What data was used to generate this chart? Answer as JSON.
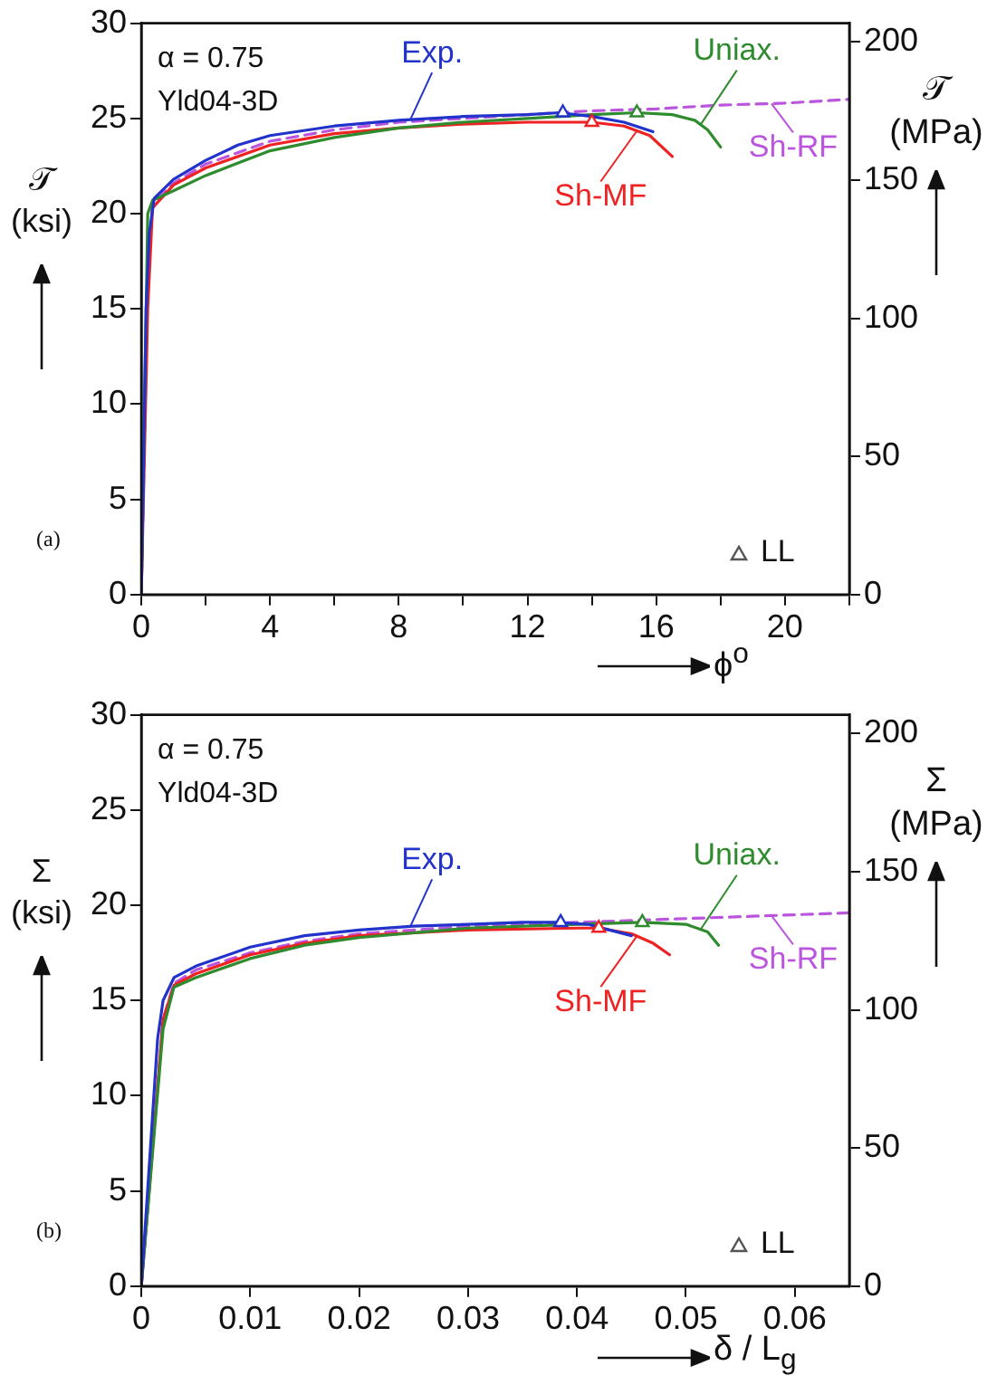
{
  "chart_data": [
    {
      "type": "line",
      "xlabel": "ϕ$^{o}$",
      "ylabel": "𝒯 (ksi)",
      "y2label": "𝒯 (MPa)",
      "annotations": [
        "α = 0.75",
        "Yld04-3D",
        "(a)",
        "LL"
      ],
      "xlim": [
        0,
        22
      ],
      "xticks": [
        0,
        {
          "value": 2,
          "label": null
        },
        4,
        {
          "value": 6,
          "label": null
        },
        8,
        {
          "value": 10,
          "label": null
        },
        12,
        {
          "value": 14,
          "label": null
        },
        16,
        {
          "value": 18,
          "label": null
        },
        20,
        {
          "value": 22,
          "label": null
        }
      ],
      "ylim": [
        0,
        30
      ],
      "yticks": [
        0,
        5,
        10,
        15,
        20,
        25,
        30
      ],
      "y2lim": [
        0,
        206.8
      ],
      "y2ticks": [
        0,
        50,
        100,
        150,
        200
      ],
      "marker": "none",
      "legend": "top right",
      "series": [
        {
          "name": "Exp.",
          "color": "#2233cc",
          "x": [
            0,
            0.15,
            0.25,
            0.4,
            1,
            2,
            3,
            4,
            6,
            8,
            10,
            12,
            13,
            14,
            15,
            15.9
          ],
          "values": [
            0,
            15,
            19,
            20.8,
            21.8,
            22.8,
            23.6,
            24.1,
            24.6,
            24.9,
            25.1,
            25.2,
            25.3,
            25.1,
            24.8,
            24.3
          ]
        },
        {
          "name": "Uniax.",
          "color": "#2e8b2e",
          "x": [
            0,
            0.1,
            0.2,
            0.35,
            1,
            2,
            4,
            6,
            8,
            10,
            12,
            14,
            15.4,
            16.5,
            17.2,
            17.6,
            18
          ],
          "values": [
            0,
            10,
            20,
            20.7,
            21.2,
            22.0,
            23.3,
            24.0,
            24.5,
            24.8,
            25.0,
            25.2,
            25.3,
            25.2,
            24.9,
            24.4,
            23.5
          ]
        },
        {
          "name": "Sh-MF",
          "color": "#ee2222",
          "x": [
            0,
            0.2,
            0.35,
            1,
            2,
            4,
            6,
            8,
            10,
            12,
            14,
            15,
            15.8,
            16.5
          ],
          "values": [
            0,
            15,
            20.3,
            21.5,
            22.4,
            23.6,
            24.2,
            24.5,
            24.7,
            24.8,
            24.8,
            24.6,
            24.1,
            23.0
          ]
        },
        {
          "name": "Sh-RF",
          "color": "#bb55dd",
          "line_style": "dashed",
          "x": [
            0,
            0.2,
            0.35,
            1,
            2,
            4,
            6,
            8,
            10,
            12,
            14,
            16,
            18,
            20,
            22
          ],
          "values": [
            0,
            17,
            20.5,
            21.6,
            22.6,
            23.8,
            24.4,
            24.8,
            25.0,
            25.2,
            25.4,
            25.5,
            25.7,
            25.8,
            26.0
          ]
        },
        {
          "type": "scatter",
          "marker": "triangle",
          "colors": [
            "#2233cc",
            "#ee2222",
            "#2e8b2e"
          ],
          "x": [
            13.1,
            14,
            15.4
          ],
          "values": [
            25.3,
            24.8,
            25.3
          ]
        }
      ]
    },
    {
      "type": "line",
      "xlabel": "δ / L$_{g}$",
      "ylabel": "Σ (ksi)",
      "y2label": "Σ (MPa)",
      "annotations": [
        "α = 0.75",
        "Yld04-3D",
        "(b)",
        "LL"
      ],
      "xlim": [
        0,
        0.065
      ],
      "xticks": [
        0,
        0.01,
        0.02,
        0.03,
        0.04,
        0.05,
        0.06
      ],
      "ylim": [
        0,
        30
      ],
      "yticks": [
        0,
        5,
        10,
        15,
        20,
        25,
        30
      ],
      "y2lim": [
        0,
        206.8
      ],
      "y2ticks": [
        0,
        50,
        100,
        150,
        200
      ],
      "marker": "none",
      "legend": "top right",
      "series": [
        {
          "name": "Exp.",
          "color": "#2233cc",
          "x": [
            0,
            0.0015,
            0.002,
            0.003,
            0.005,
            0.01,
            0.015,
            0.02,
            0.025,
            0.03,
            0.035,
            0.038,
            0.041,
            0.043,
            0.045
          ],
          "values": [
            0,
            13,
            15,
            16.2,
            16.8,
            17.8,
            18.4,
            18.7,
            18.9,
            19.0,
            19.1,
            19.1,
            19.0,
            18.7,
            18.4
          ]
        },
        {
          "name": "Uniax.",
          "color": "#2e8b2e",
          "x": [
            0,
            0.002,
            0.003,
            0.005,
            0.01,
            0.015,
            0.02,
            0.03,
            0.04,
            0.046,
            0.05,
            0.052,
            0.053
          ],
          "values": [
            0,
            13.5,
            15.7,
            16.2,
            17.2,
            17.9,
            18.3,
            18.8,
            19.0,
            19.1,
            19.0,
            18.6,
            17.9
          ]
        },
        {
          "name": "Sh-MF",
          "color": "#ee2222",
          "x": [
            0,
            0.002,
            0.003,
            0.005,
            0.01,
            0.015,
            0.02,
            0.03,
            0.04,
            0.042,
            0.045,
            0.047,
            0.0485
          ],
          "values": [
            0,
            14,
            15.8,
            16.4,
            17.4,
            18.0,
            18.4,
            18.7,
            18.8,
            18.8,
            18.5,
            18.0,
            17.4
          ]
        },
        {
          "name": "Sh-RF",
          "color": "#bb55dd",
          "line_style": "dashed",
          "x": [
            0,
            0.002,
            0.003,
            0.005,
            0.01,
            0.015,
            0.02,
            0.03,
            0.04,
            0.05,
            0.06,
            0.065
          ],
          "values": [
            0,
            14,
            15.9,
            16.6,
            17.5,
            18.1,
            18.5,
            18.9,
            19.1,
            19.3,
            19.5,
            19.6
          ]
        },
        {
          "type": "scatter",
          "marker": "triangle",
          "colors": [
            "#2233cc",
            "#ee2222",
            "#2e8b2e"
          ],
          "x": [
            0.0385,
            0.042,
            0.046
          ],
          "values": [
            19.1,
            18.8,
            19.1
          ]
        }
      ]
    }
  ]
}
